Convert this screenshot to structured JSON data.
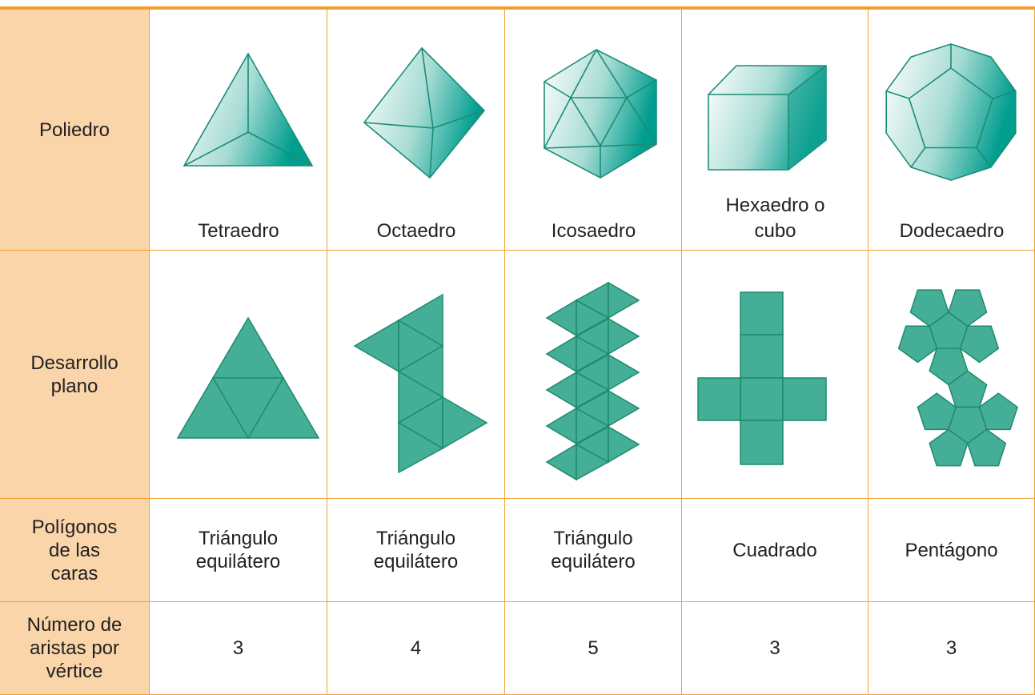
{
  "header_column": [
    "Poliedro",
    "Desarrollo plano",
    "Polígonos de las caras",
    "Número de aristas por vértice"
  ],
  "polyhedra": [
    {
      "name": "Tetraedro",
      "faces": "Triángulo equilátero",
      "edges_per_vertex": 3
    },
    {
      "name": "Octaedro",
      "faces": "Triángulo equilátero",
      "edges_per_vertex": 4
    },
    {
      "name": "Icosaedro",
      "faces": "Triángulo equilátero",
      "edges_per_vertex": 5
    },
    {
      "name": "Hexaedro o cubo",
      "faces": "Cuadrado",
      "edges_per_vertex": 3
    },
    {
      "name": "Dodecaedro",
      "faces": "Pentágono",
      "edges_per_vertex": 3
    }
  ]
}
